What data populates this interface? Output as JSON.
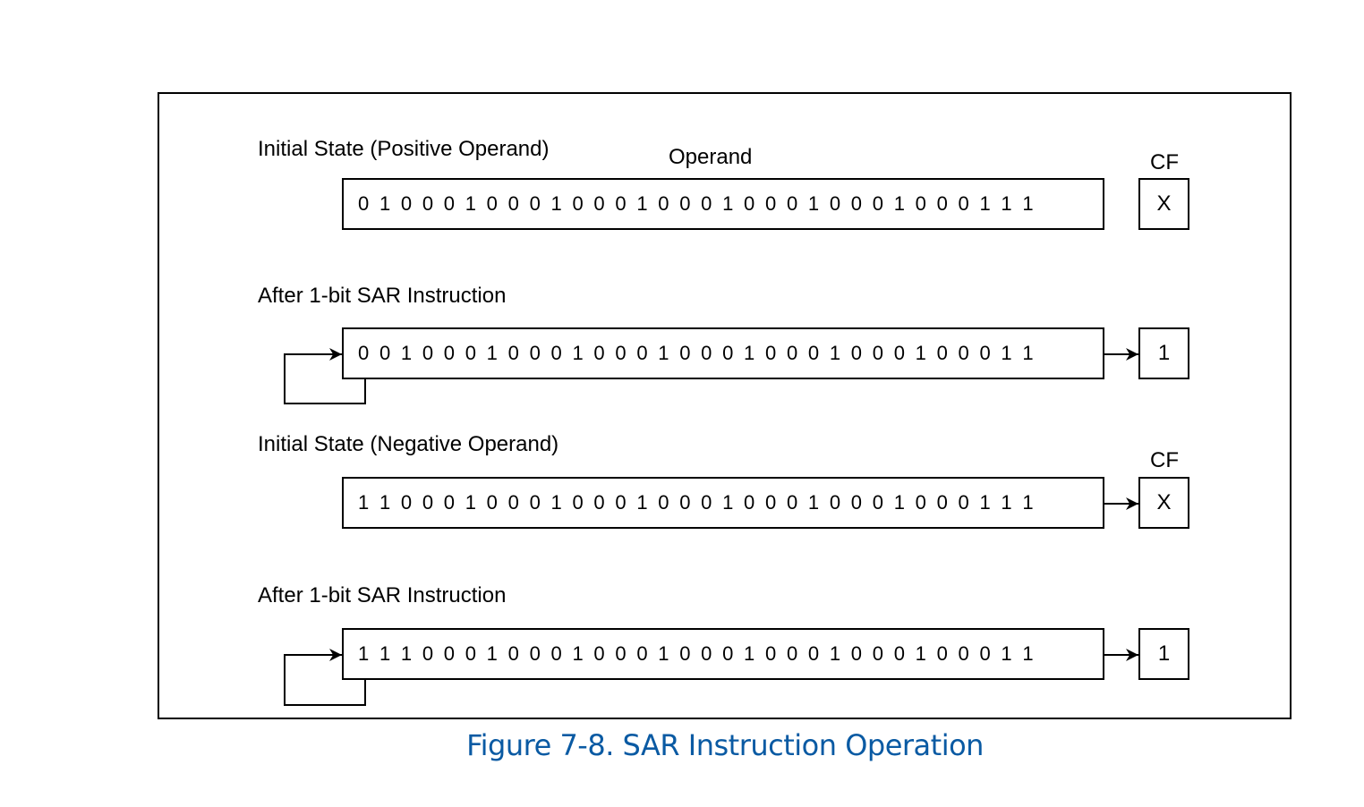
{
  "diagram": {
    "operand_label": "Operand",
    "cf_label": "CF",
    "rows": [
      {
        "title": "Initial State (Positive Operand)",
        "bits": "0 1 0 0 0 1 0 0 0 1 0 0 0 1 0 0 0 1 0 0 0 1 0 0 0 1 0 0 0 1 1 1",
        "cf": "X"
      },
      {
        "title": "After 1-bit SAR Instruction",
        "bits": "0 0 1 0 0 0 1 0 0 0 1 0 0 0 1 0 0 0 1 0 0 0 1 0 0 0 1 0 0 0 1 1",
        "cf": "1"
      },
      {
        "title": "Initial State (Negative Operand)",
        "bits": "1 1 0 0 0 1 0 0 0 1 0 0 0 1 0 0 0 1 0 0 0 1 0 0 0 1 0 0 0 1 1 1",
        "cf": "X"
      },
      {
        "title": "After 1-bit SAR Instruction",
        "bits": "1 1 1 0 0 0 1 0 0 0 1 0 0 0 1 0 0 0 1 0 0 0 1 0 0 0 1 0 0 0 1 1",
        "cf": "1"
      }
    ]
  },
  "caption": "Figure 7-8.  SAR Instruction Operation",
  "colors": {
    "caption": "#0a5aa3",
    "stroke": "#000000"
  }
}
